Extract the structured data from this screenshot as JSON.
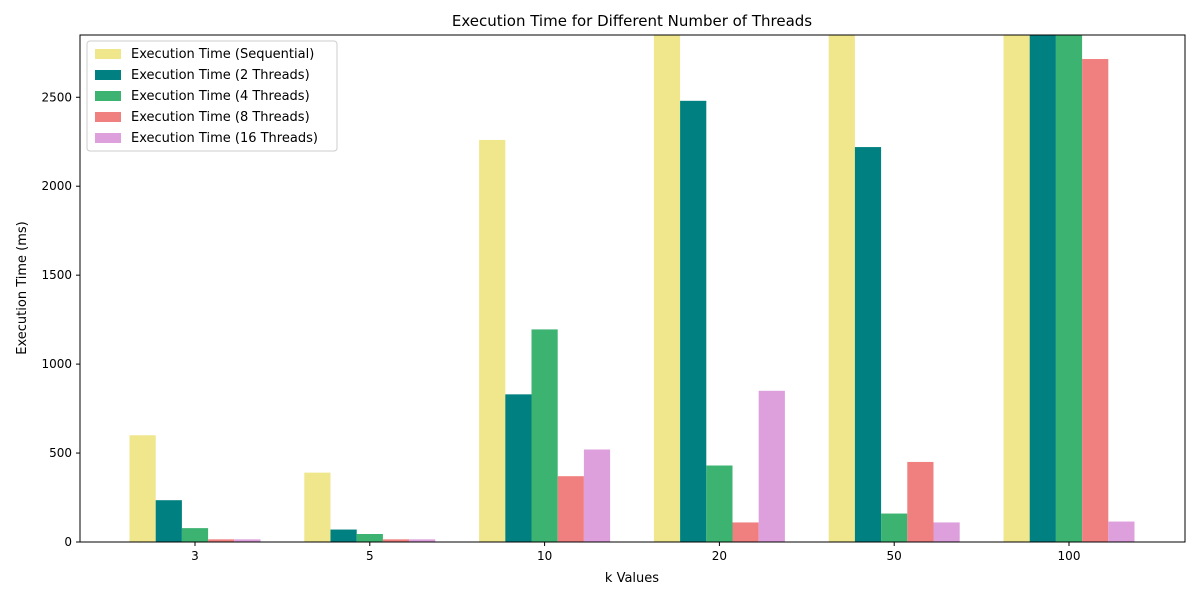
{
  "chart_data": {
    "type": "bar",
    "title": "Execution Time for Different Number of Threads",
    "xlabel": "k Values",
    "ylabel": "Execution Time (ms)",
    "categories": [
      "3",
      "5",
      "10",
      "20",
      "50",
      "100"
    ],
    "ylim": [
      0,
      2850
    ],
    "yticks": [
      0,
      500,
      1000,
      1500,
      2000,
      2500
    ],
    "legend_position": "top-left",
    "series": [
      {
        "name": "Execution Time (Sequential)",
        "color": "#f0e68c",
        "values": [
          600,
          390,
          2260,
          2850,
          2850,
          2850
        ]
      },
      {
        "name": "Execution Time (2 Threads)",
        "color": "#008080",
        "values": [
          235,
          70,
          830,
          2480,
          2220,
          2850
        ]
      },
      {
        "name": "Execution Time (4 Threads)",
        "color": "#3cb371",
        "values": [
          78,
          45,
          1195,
          430,
          160,
          2850
        ]
      },
      {
        "name": "Execution Time (8 Threads)",
        "color": "#f08080",
        "values": [
          15,
          15,
          370,
          110,
          450,
          2715
        ]
      },
      {
        "name": "Execution Time (16 Threads)",
        "color": "#dda0dd",
        "values": [
          15,
          15,
          520,
          850,
          110,
          115
        ]
      }
    ]
  }
}
